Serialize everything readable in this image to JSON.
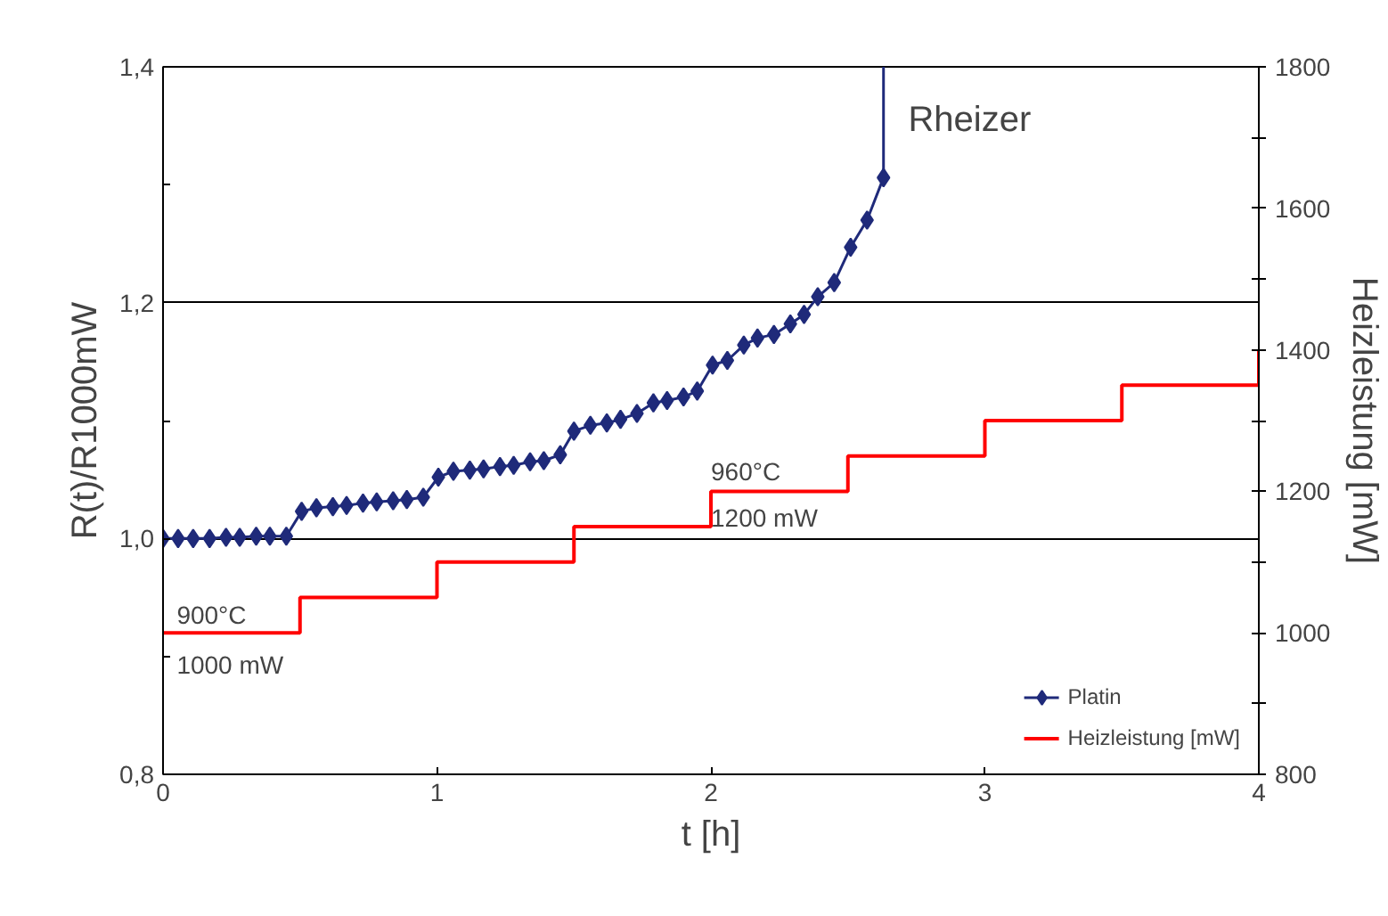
{
  "chart_data": {
    "type": "line",
    "xlabel": "t [h]",
    "ylabel": "R(t)/R1000mW",
    "y2label": "Heizleistung [mW]",
    "xlim": [
      0,
      4
    ],
    "xticks": [
      0,
      1,
      2,
      3,
      4
    ],
    "ylim": [
      0.8,
      1.4
    ],
    "yticks": [
      {
        "value": 0.8,
        "label": "0,8"
      },
      {
        "value": 0.9,
        "label": null
      },
      {
        "value": 1.0,
        "label": "1,0"
      },
      {
        "value": 1.1,
        "label": null
      },
      {
        "value": 1.2,
        "label": "1,2"
      },
      {
        "value": 1.3,
        "label": null
      },
      {
        "value": 1.4,
        "label": "1,4"
      }
    ],
    "y2lim": [
      800,
      1800
    ],
    "y2ticks": [
      800,
      {
        "value": 900,
        "label": null
      },
      1000,
      {
        "value": 1100,
        "label": null
      },
      1200,
      {
        "value": 1300,
        "label": null
      },
      1400,
      {
        "value": 1500,
        "label": null
      },
      1600,
      {
        "value": 1700,
        "label": null
      },
      1800
    ],
    "grid": "y",
    "legend": "bottom right",
    "series": [
      {
        "name": "Platin",
        "marker": "diamond",
        "color": "#1f2a7a",
        "x": [
          0,
          0.055,
          0.11,
          0.17,
          0.23,
          0.28,
          0.34,
          0.39,
          0.45,
          0.506,
          0.56,
          0.62,
          0.67,
          0.73,
          0.78,
          0.84,
          0.89,
          0.95,
          1.005,
          1.06,
          1.12,
          1.17,
          1.23,
          1.28,
          1.34,
          1.39,
          1.45,
          1.5,
          1.56,
          1.62,
          1.67,
          1.73,
          1.79,
          1.84,
          1.9,
          1.95,
          2.006,
          2.06,
          2.12,
          2.17,
          2.23,
          2.29,
          2.34,
          2.39,
          2.45,
          2.51,
          2.57,
          2.63
        ],
        "values": [
          1.0,
          1.0,
          1.0,
          1.0,
          1.001,
          1.001,
          1.002,
          1.002,
          1.002,
          1.023,
          1.026,
          1.027,
          1.028,
          1.03,
          1.031,
          1.032,
          1.033,
          1.035,
          1.052,
          1.057,
          1.058,
          1.059,
          1.061,
          1.062,
          1.065,
          1.066,
          1.071,
          1.091,
          1.096,
          1.098,
          1.101,
          1.106,
          1.115,
          1.117,
          1.12,
          1.125,
          1.147,
          1.151,
          1.164,
          1.17,
          1.173,
          1.182,
          1.19,
          1.205,
          1.217,
          1.247,
          1.27,
          1.306
        ]
      },
      {
        "marker": "none",
        "color": "#1f2a7a",
        "x": [
          2.63,
          2.63
        ],
        "values": [
          1.306,
          1.4
        ]
      },
      {
        "name": "Heizleistung [mW]",
        "type": "step",
        "axis": "y2",
        "color": "#ff0000",
        "x": [
          0,
          0.5,
          1,
          1.5,
          2,
          2.5,
          3,
          3.5,
          4
        ],
        "values": [
          1000,
          1050,
          1100,
          1150,
          1200,
          1250,
          1300,
          1350,
          1400
        ]
      }
    ],
    "annotations": [
      "900°C",
      "1000 mW",
      "960°C",
      "1200 mW",
      "Rheizer"
    ]
  }
}
